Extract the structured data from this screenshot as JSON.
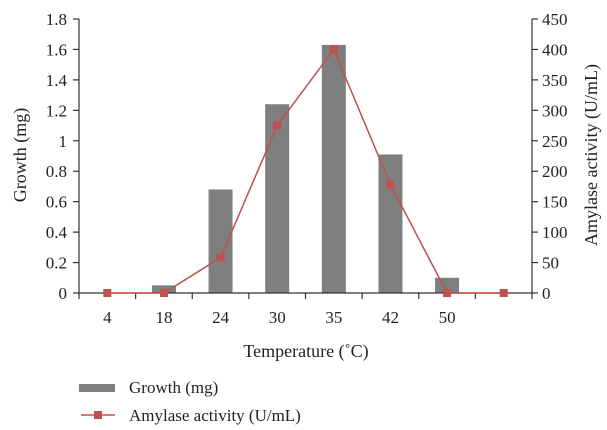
{
  "chart_data": {
    "type": "bar",
    "xlabel": "Temperature (˚C)",
    "ylabel_left": "Growth (mg)",
    "ylabel_right": "Amylase activity (U/mL)",
    "categories": [
      "4",
      "18",
      "24",
      "30",
      "35",
      "42",
      "50",
      ""
    ],
    "ylim_left": [
      0,
      1.8
    ],
    "ylim_right": [
      0,
      450
    ],
    "yticks_left": [
      "0",
      "0.2",
      "0.4",
      "0.6",
      "0.8",
      "1",
      "1.2",
      "1.4",
      "1.6",
      "1.8"
    ],
    "yticks_right": [
      "0",
      "50",
      "100",
      "150",
      "200",
      "250",
      "300",
      "350",
      "400",
      "450"
    ],
    "legend_position": "bottom-left",
    "series": [
      {
        "name": "Growth (mg)",
        "kind": "bar",
        "axis": "left",
        "color": "#7f7f7f",
        "values": [
          0,
          0.05,
          0.68,
          1.24,
          1.63,
          0.91,
          0.1,
          0
        ]
      },
      {
        "name": "Amylase activity (U/mL)",
        "kind": "line",
        "axis": "right",
        "color": "#c0504d",
        "marker": "square",
        "values": [
          0,
          0,
          58,
          275,
          400,
          178,
          0,
          0
        ]
      }
    ]
  }
}
